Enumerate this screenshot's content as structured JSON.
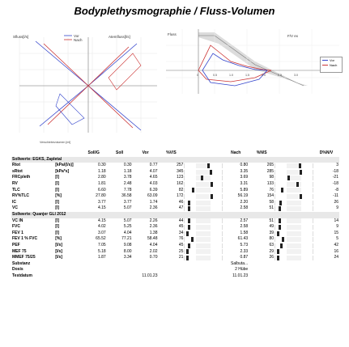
{
  "title": "Bodyplethysmographie / Fluss-Volumen",
  "plot1": {
    "y_label": "Sfluss[l/s]",
    "x_label": "Verschiebevolumen [ml]",
    "legend": [
      "Vor",
      "Nach"
    ],
    "right_label": "Atemfluss[l/s]"
  },
  "plot2": {
    "y_label": "Fluss",
    "x_ticks": [
      "0",
      "0.5",
      "1.0",
      "1.5",
      "2.0",
      "2.5",
      "3.0"
    ],
    "legend": [
      "Vor",
      "Nach"
    ],
    "peak_label": "F/V ex"
  },
  "table": {
    "headers": [
      "",
      "",
      "Soll/G",
      "Soll",
      "Vor",
      "%V/S",
      "",
      "Nach",
      "%N/S",
      "",
      "D%N/V"
    ],
    "section1": "Sollwerte: EGKS, Zapletal",
    "rows1": [
      {
        "name": "Rtot",
        "unit": "[kPa/(l/s)]",
        "sollg": "0.30",
        "soll": "0.30",
        "vor": "0.77",
        "vs": "257",
        "vs_pos": 0.85,
        "nach": "0.80",
        "ns": "265",
        "ns_pos": 0.88,
        "d": "3"
      },
      {
        "name": "sRtot",
        "unit": "[kPa*s]",
        "sollg": "1.18",
        "soll": "1.18",
        "vor": "4.07",
        "vs": "345",
        "vs_pos": 0.92,
        "nach": "3.35",
        "ns": "285",
        "ns_pos": 0.9,
        "d": "-18"
      },
      {
        "name": "FRCpleth",
        "unit": "[l]",
        "sollg": "2.80",
        "soll": "3.78",
        "vor": "4.65",
        "vs": "123",
        "vs_pos": 0.6,
        "nach": "3.69",
        "ns": "98",
        "ns_pos": 0.45,
        "d": "-21"
      },
      {
        "name": "RV",
        "unit": "[l]",
        "sollg": "1.81",
        "soll": "2.48",
        "vor": "4.03",
        "vs": "162",
        "vs_pos": 0.95,
        "nach": "3.31",
        "ns": "133",
        "ns_pos": 0.8,
        "d": "-18"
      },
      {
        "name": "TLC",
        "unit": "[l]",
        "sollg": "6.60",
        "soll": "7.78",
        "vor": "6.39",
        "vs": "82",
        "vs_pos": 0.25,
        "nach": "5.89",
        "ns": "76",
        "ns_pos": 0.2,
        "d": "-8"
      },
      {
        "name": "RV%TLC",
        "unit": "[%]",
        "sollg": "27.80",
        "soll": "36.58",
        "vor": "63.09",
        "vs": "172",
        "vs_pos": 0.95,
        "nach": "56.19",
        "ns": "154",
        "ns_pos": 0.9,
        "d": "-11"
      },
      {
        "name": "IC",
        "unit": "[l]",
        "sollg": "3.77",
        "soll": "3.77",
        "vor": "1.74",
        "vs": "46",
        "vs_pos": 0.1,
        "nach": "2.20",
        "ns": "58",
        "ns_pos": 0.15,
        "d": "26"
      },
      {
        "name": "VC",
        "unit": "[l]",
        "sollg": "4.15",
        "soll": "5.07",
        "vor": "2.36",
        "vs": "47",
        "vs_pos": 0.1,
        "nach": "2.58",
        "ns": "51",
        "ns_pos": 0.12,
        "d": "9"
      }
    ],
    "section2": "Sollwerte: Quanjer GLI 2012",
    "rows2": [
      {
        "name": "VC IN",
        "unit": "[l]",
        "sollg": "4.15",
        "soll": "5.07",
        "vor": "2.26",
        "vs": "44",
        "vs_pos": 0.1,
        "nach": "2.57",
        "ns": "51",
        "ns_pos": 0.12,
        "d": "14"
      },
      {
        "name": "FVC",
        "unit": "[l]",
        "sollg": "4.02",
        "soll": "5.25",
        "vor": "2.36",
        "vs": "45",
        "vs_pos": 0.1,
        "nach": "2.58",
        "ns": "49",
        "ns_pos": 0.11,
        "d": "9"
      },
      {
        "name": "FEV 1",
        "unit": "[l]",
        "sollg": "3.07",
        "soll": "4.04",
        "vor": "1.38",
        "vs": "34",
        "vs_pos": 0.05,
        "nach": "1.58",
        "ns": "39",
        "ns_pos": 0.07,
        "d": "15"
      },
      {
        "name": "FEV 1 % FVC",
        "unit": "[%]",
        "sollg": "65.52",
        "soll": "77.21",
        "vor": "58.48",
        "vs": "76",
        "vs_pos": 0.22,
        "nach": "61.43",
        "ns": "80",
        "ns_pos": 0.25,
        "d": "5"
      },
      {
        "name": "PEF",
        "unit": "[l/s]",
        "sollg": "7.05",
        "soll": "9.08",
        "vor": "4.04",
        "vs": "45",
        "vs_pos": 0.1,
        "nach": "5.73",
        "ns": "63",
        "ns_pos": 0.18,
        "d": "42"
      },
      {
        "name": "MEF 75",
        "unit": "[l/s]",
        "sollg": "5.18",
        "soll": "8.00",
        "vor": "2.02",
        "vs": "25",
        "vs_pos": 0.05,
        "nach": "2.33",
        "ns": "29",
        "ns_pos": 0.06,
        "d": "16"
      },
      {
        "name": "MMEF 75/25",
        "unit": "[l/s]",
        "sollg": "1.87",
        "soll": "3.34",
        "vor": "0.70",
        "vs": "21",
        "vs_pos": 0.05,
        "nach": "0.87",
        "ns": "26",
        "ns_pos": 0.06,
        "d": "24"
      }
    ],
    "substanz_label": "Substanz",
    "substanz_value": "Salbuta...",
    "dosis_label": "Dosis",
    "dosis_value": "2 Hübe",
    "testdatum_label": "Testdatum",
    "testdatum_vor": "11.01.23",
    "testdatum_nach": "11.01.23"
  }
}
